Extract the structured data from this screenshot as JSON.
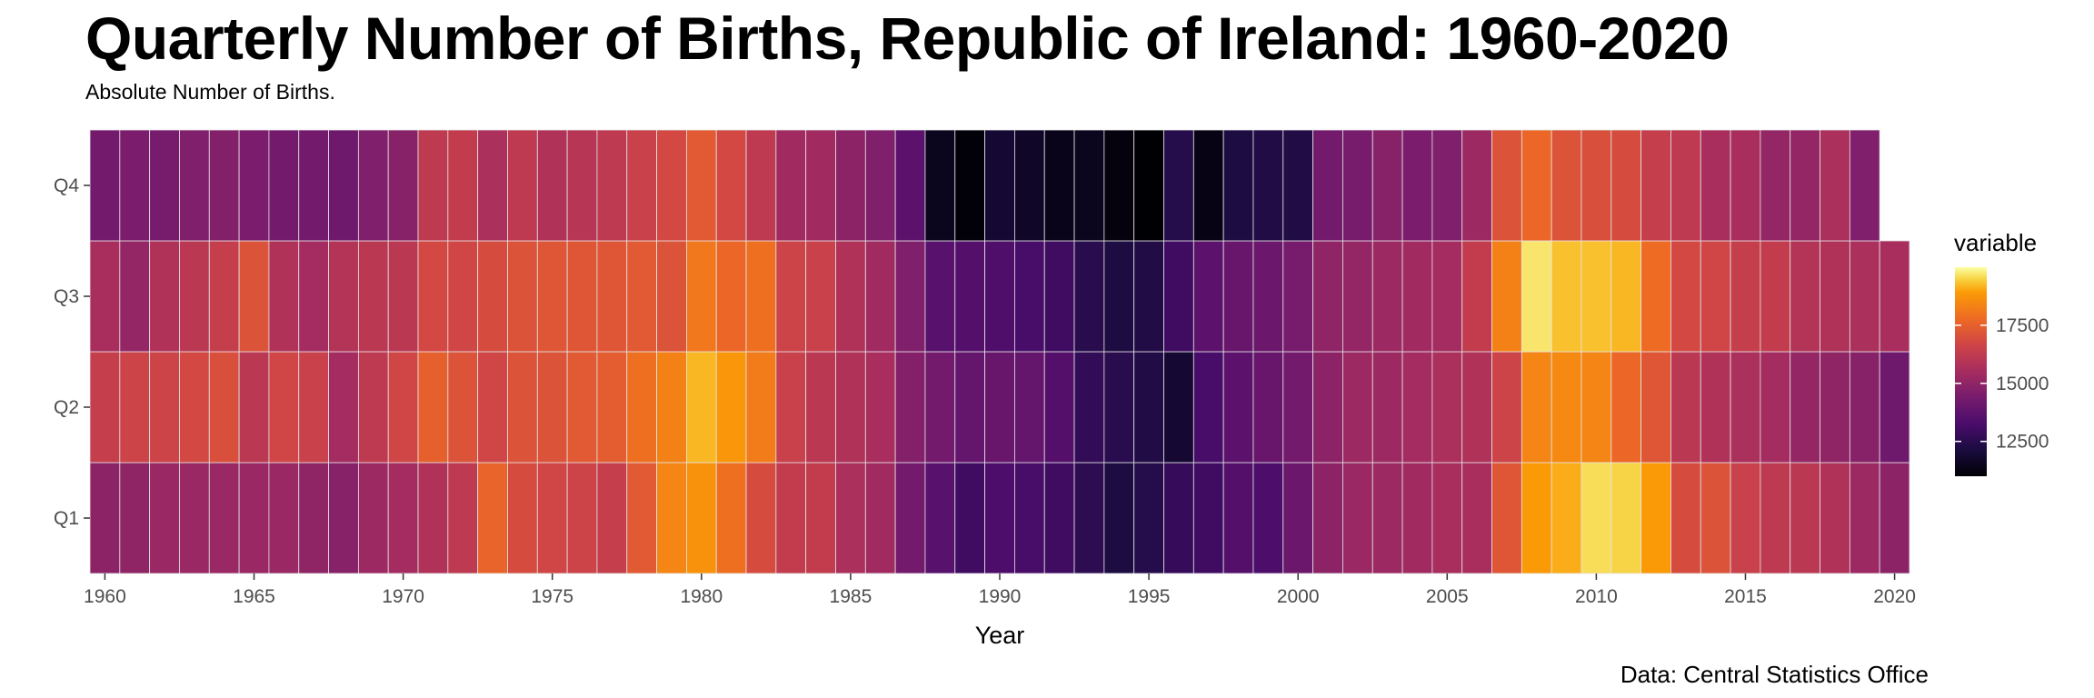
{
  "chart_data": {
    "type": "heatmap",
    "title": "Quarterly Number of Births, Republic of Ireland: 1960-2020",
    "subtitle": "Absolute Number of Births.",
    "caption": "Data: Central Statistics Office",
    "xlabel": "Year",
    "ylabel": "",
    "x_ticks": [
      1960,
      1965,
      1970,
      1975,
      1980,
      1985,
      1990,
      1995,
      2000,
      2005,
      2010,
      2015,
      2020
    ],
    "xlim": [
      1959.5,
      2020.5
    ],
    "y_categories": [
      "Q1",
      "Q2",
      "Q3",
      "Q4"
    ],
    "legend": {
      "title": "variable",
      "placement": "right",
      "breaks": [
        12500,
        15000,
        17500
      ],
      "range": [
        11000,
        20000
      ]
    },
    "years": [
      1960,
      1961,
      1962,
      1963,
      1964,
      1965,
      1966,
      1967,
      1968,
      1969,
      1970,
      1971,
      1972,
      1973,
      1974,
      1975,
      1976,
      1977,
      1978,
      1979,
      1980,
      1981,
      1982,
      1983,
      1984,
      1985,
      1986,
      1987,
      1988,
      1989,
      1990,
      1991,
      1992,
      1993,
      1994,
      1995,
      1996,
      1997,
      1998,
      1999,
      2000,
      2001,
      2002,
      2003,
      2004,
      2005,
      2006,
      2007,
      2008,
      2009,
      2010,
      2011,
      2012,
      2013,
      2014,
      2015,
      2016,
      2017,
      2018,
      2019,
      2020
    ],
    "series": [
      {
        "name": "Q1",
        "values": [
          14900,
          15000,
          15200,
          15200,
          15200,
          15200,
          15200,
          15000,
          14800,
          15300,
          15500,
          15800,
          16200,
          17600,
          16900,
          16700,
          16600,
          16400,
          17300,
          18400,
          18700,
          17900,
          16900,
          16300,
          16300,
          15700,
          15400,
          14300,
          13600,
          13000,
          13300,
          13200,
          13000,
          12600,
          12200,
          12400,
          12800,
          13000,
          13500,
          13300,
          14100,
          14900,
          15200,
          15300,
          15400,
          15600,
          15600,
          17200,
          18900,
          19100,
          19600,
          19500,
          18900,
          16900,
          17100,
          16500,
          16200,
          16100,
          15800,
          15300,
          14900
        ]
      },
      {
        "name": "Q2",
        "values": [
          16400,
          16600,
          16600,
          16800,
          17000,
          16100,
          16700,
          16500,
          15500,
          16200,
          16700,
          17500,
          17100,
          16700,
          17100,
          17100,
          17300,
          17400,
          17900,
          18300,
          19200,
          18800,
          18200,
          16500,
          16100,
          15800,
          15600,
          14700,
          14300,
          13900,
          14000,
          13900,
          13500,
          12700,
          12500,
          12300,
          11900,
          13200,
          13700,
          14000,
          14300,
          14900,
          15300,
          15300,
          15500,
          15700,
          15800,
          16600,
          18400,
          18500,
          18400,
          17700,
          17200,
          16100,
          15800,
          15700,
          15500,
          15100,
          15000,
          14800,
          14200
        ]
      },
      {
        "name": "Q3",
        "values": [
          15600,
          15100,
          15800,
          16100,
          16400,
          17100,
          15800,
          15500,
          15900,
          16100,
          16100,
          16800,
          16700,
          16900,
          17100,
          17200,
          17200,
          17200,
          17300,
          17100,
          18100,
          17700,
          17900,
          16600,
          16500,
          15800,
          15400,
          14600,
          13600,
          13500,
          13400,
          13200,
          13000,
          12500,
          12200,
          12300,
          13000,
          13700,
          14000,
          14100,
          14400,
          15000,
          15100,
          15300,
          15400,
          15500,
          16300,
          18300,
          19700,
          19300,
          19300,
          19200,
          17800,
          16800,
          16700,
          16400,
          16300,
          15900,
          15800,
          15700,
          15600
        ]
      },
      {
        "name": "Q4",
        "values": [
          14300,
          14500,
          14400,
          14600,
          14700,
          14500,
          14300,
          14300,
          14200,
          14600,
          14800,
          16200,
          16300,
          15700,
          16200,
          15800,
          16000,
          16200,
          16500,
          16800,
          17300,
          16800,
          16200,
          15400,
          15400,
          14900,
          14600,
          13700,
          11500,
          11100,
          11900,
          11700,
          11400,
          11500,
          11200,
          10600,
          12400,
          11300,
          12200,
          12300,
          12300,
          14300,
          14400,
          14800,
          14500,
          14600,
          15300,
          17100,
          17700,
          17100,
          17000,
          16900,
          16400,
          16200,
          15600,
          15600,
          15100,
          15100,
          15700,
          14600,
          null
        ]
      }
    ]
  }
}
